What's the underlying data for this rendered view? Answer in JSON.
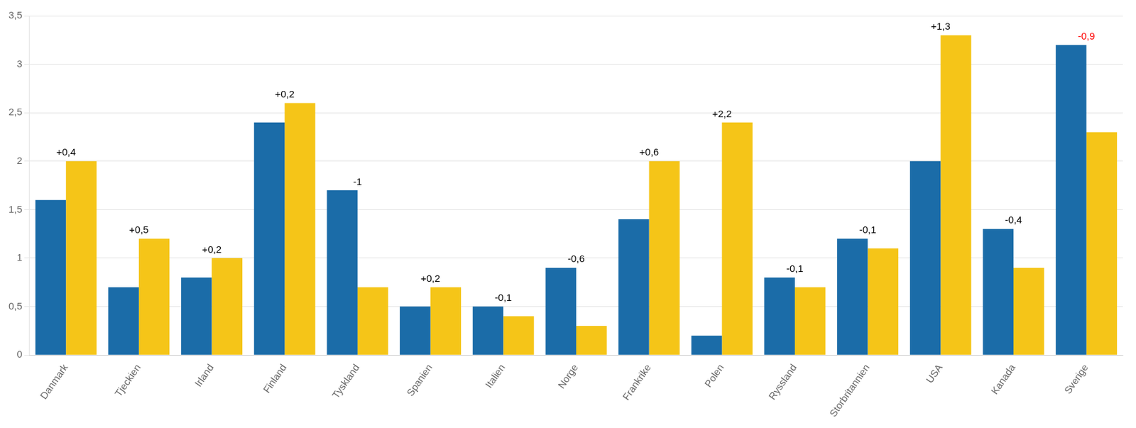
{
  "chart_data": {
    "type": "bar",
    "categories": [
      "Danmark",
      "Tjeckien",
      "Irland",
      "Finland",
      "Tyskland",
      "Spanien",
      "Italien",
      "Norge",
      "Frankrike",
      "Polen",
      "Ryssland",
      "Storbritannien",
      "USA",
      "Kanada",
      "Sverige"
    ],
    "series": [
      {
        "color": "#1B6CA8",
        "values": [
          1.6,
          0.7,
          0.8,
          2.4,
          1.7,
          0.5,
          0.5,
          0.9,
          1.4,
          0.2,
          0.8,
          1.2,
          2.0,
          1.3,
          3.2
        ]
      },
      {
        "color": "#F5C518",
        "values": [
          2.0,
          1.2,
          1.0,
          2.6,
          0.7,
          0.7,
          0.4,
          0.3,
          2.0,
          2.4,
          0.7,
          1.1,
          3.3,
          0.9,
          2.3
        ]
      }
    ],
    "annotations": [
      {
        "x": "Danmark",
        "text": "+0,4",
        "color": "black"
      },
      {
        "x": "Tjeckien",
        "text": "+0,5",
        "color": "black"
      },
      {
        "x": "Irland",
        "text": "+0,2",
        "color": "black"
      },
      {
        "x": "Finland",
        "text": "+0,2",
        "color": "black"
      },
      {
        "x": "Tyskland",
        "text": "-1",
        "color": "black"
      },
      {
        "x": "Spanien",
        "text": "+0,2",
        "color": "black"
      },
      {
        "x": "Italien",
        "text": "-0,1",
        "color": "black"
      },
      {
        "x": "Norge",
        "text": "-0,6",
        "color": "black"
      },
      {
        "x": "Frankrike",
        "text": "+0,6",
        "color": "black"
      },
      {
        "x": "Polen",
        "text": "+2,2",
        "color": "black"
      },
      {
        "x": "Ryssland",
        "text": "-0,1",
        "color": "black"
      },
      {
        "x": "Storbritannien",
        "text": "-0,1",
        "color": "black"
      },
      {
        "x": "USA",
        "text": "+1,3",
        "color": "black"
      },
      {
        "x": "Kanada",
        "text": "-0,4",
        "color": "black"
      },
      {
        "x": "Sverige",
        "text": "-0,9",
        "color": "red"
      }
    ],
    "ylim": [
      0,
      3.5
    ],
    "yticks": [
      0,
      {
        "value": 0.5,
        "label": "0,5"
      },
      1,
      {
        "value": 1.5,
        "label": "1,5"
      },
      2,
      {
        "value": 2.5,
        "label": "2,5"
      },
      3,
      {
        "value": 3.5,
        "label": "3,5"
      }
    ],
    "grid": true
  }
}
